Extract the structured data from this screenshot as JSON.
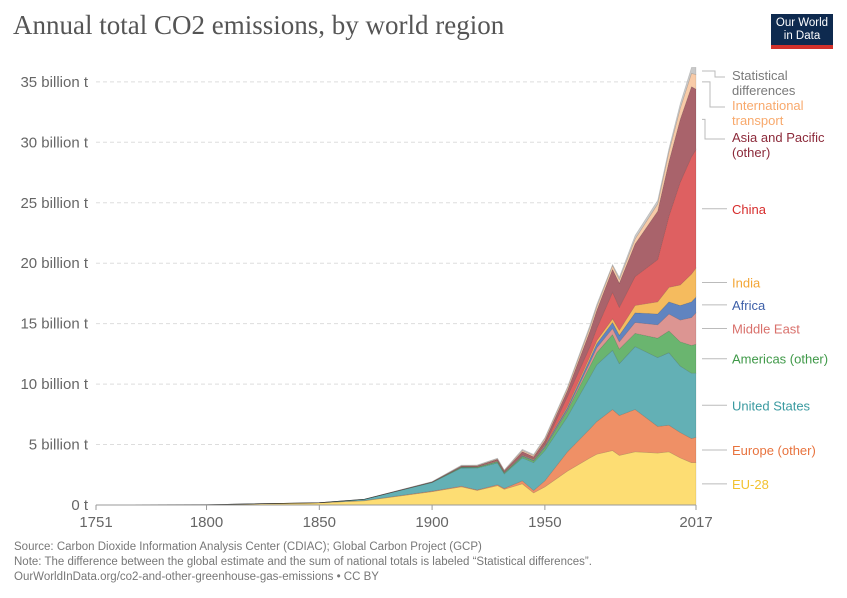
{
  "title": "Annual total CO2 emissions, by world region",
  "logo": {
    "line1": "Our World",
    "line2": "in Data"
  },
  "footer": {
    "source": "Source: Carbon Dioxide Information Analysis Center (CDIAC); Global Carbon Project (GCP)",
    "note": "Note: The difference between the global estimate and the sum of national totals is labeled “Statistical differences”.",
    "url": "OurWorldInData.org/co2-and-other-greenhouse-gas-emissions • CC BY"
  },
  "chart_data": {
    "type": "area",
    "stacked": true,
    "title": "Annual total CO2 emissions, by world region",
    "xlabel": "",
    "ylabel": "",
    "xlim": [
      1751,
      2017
    ],
    "ylim": [
      0,
      36
    ],
    "unit": "billion t",
    "x_ticks": [
      "1751",
      "1800",
      "1850",
      "1900",
      "1950",
      "2017"
    ],
    "x_tick_values": [
      1751,
      1800,
      1850,
      1900,
      1950,
      2017
    ],
    "y_ticks": [
      "0 t",
      "5 billion t",
      "10 billion t",
      "15 billion t",
      "20 billion t",
      "25 billion t",
      "30 billion t",
      "35 billion t"
    ],
    "y_tick_values": [
      0,
      5,
      10,
      15,
      20,
      25,
      30,
      35
    ],
    "grid": "horizontal dashed",
    "legend": "right (inline labels)",
    "x": [
      1751,
      1800,
      1850,
      1870,
      1900,
      1913,
      1920,
      1929,
      1932,
      1940,
      1945,
      1950,
      1960,
      1970,
      1973,
      1980,
      1983,
      1990,
      2000,
      2005,
      2010,
      2015,
      2017
    ],
    "series": [
      {
        "name": "EU-28",
        "fill": "#fddd73",
        "label_color": "#f2c230",
        "values": [
          0.009,
          0.03,
          0.18,
          0.35,
          1.1,
          1.5,
          1.2,
          1.6,
          1.3,
          1.75,
          1.0,
          1.5,
          2.8,
          3.9,
          4.2,
          4.5,
          4.1,
          4.4,
          4.3,
          4.4,
          3.9,
          3.5,
          3.5
        ]
      },
      {
        "name": "Europe (other)",
        "fill": "#ef9066",
        "label_color": "#e8733e",
        "values": [
          0,
          0,
          0.005,
          0.02,
          0.05,
          0.06,
          0.05,
          0.08,
          0.07,
          0.25,
          0.2,
          0.5,
          1.6,
          2.4,
          2.7,
          3.4,
          3.3,
          3.5,
          2.2,
          2.2,
          2.1,
          2.0,
          2.1
        ]
      },
      {
        "name": "United States",
        "fill": "#63b0b5",
        "label_color": "#3a9aa0",
        "values": [
          0,
          0.001,
          0.005,
          0.1,
          0.7,
          1.5,
          1.8,
          1.8,
          1.2,
          1.9,
          2.3,
          2.5,
          2.9,
          4.3,
          4.7,
          4.9,
          4.3,
          5.2,
          5.7,
          6.0,
          5.5,
          5.4,
          5.3
        ]
      },
      {
        "name": "Americas (other)",
        "fill": "#6ab56f",
        "label_color": "#3f9948",
        "values": [
          0,
          0,
          0,
          0.005,
          0.02,
          0.06,
          0.07,
          0.1,
          0.08,
          0.12,
          0.15,
          0.25,
          0.5,
          0.9,
          1.0,
          1.3,
          1.2,
          1.1,
          1.6,
          1.8,
          2.0,
          2.3,
          2.4
        ]
      },
      {
        "name": "Middle East",
        "fill": "#dc9592",
        "label_color": "#d9706b",
        "values": [
          0,
          0,
          0,
          0,
          0,
          0,
          0.005,
          0.01,
          0.01,
          0.02,
          0.02,
          0.04,
          0.1,
          0.3,
          0.4,
          0.5,
          0.6,
          0.9,
          1.1,
          1.4,
          1.8,
          2.3,
          2.6
        ]
      },
      {
        "name": "Africa",
        "fill": "#6084c0",
        "label_color": "#3d5fa8",
        "values": [
          0,
          0,
          0,
          0,
          0.01,
          0.02,
          0.02,
          0.03,
          0.03,
          0.05,
          0.05,
          0.1,
          0.15,
          0.3,
          0.35,
          0.5,
          0.55,
          0.8,
          0.9,
          1.0,
          1.2,
          1.3,
          1.3
        ]
      },
      {
        "name": "India",
        "fill": "#f5bb5e",
        "label_color": "#f3a636",
        "values": [
          0,
          0,
          0,
          0,
          0.01,
          0.02,
          0.02,
          0.03,
          0.03,
          0.04,
          0.05,
          0.06,
          0.12,
          0.2,
          0.25,
          0.3,
          0.4,
          0.6,
          1.0,
          1.2,
          1.7,
          2.3,
          2.4
        ]
      },
      {
        "name": "China",
        "fill": "#de6061",
        "label_color": "#d72d2d",
        "values": [
          0,
          0,
          0,
          0,
          0,
          0.01,
          0.01,
          0.03,
          0.03,
          0.03,
          0.02,
          0.08,
          0.8,
          0.8,
          1.0,
          2.2,
          1.9,
          2.4,
          3.5,
          5.9,
          8.5,
          9.7,
          9.8
        ]
      },
      {
        "name": "Asia and Pacific (other)",
        "fill": "#a9636b",
        "label_color": "#8c2a3a",
        "values": [
          0,
          0,
          0,
          0.005,
          0.03,
          0.06,
          0.06,
          0.1,
          0.08,
          0.25,
          0.2,
          0.3,
          0.5,
          1.3,
          1.5,
          1.9,
          2.0,
          2.7,
          4.0,
          4.5,
          5.2,
          5.8,
          5.0
        ]
      },
      {
        "name": "International transport",
        "fill": "#f8cba8",
        "label_color": "#f8a96c",
        "values": [
          0,
          0,
          0,
          0,
          0,
          0.02,
          0.03,
          0.05,
          0.04,
          0.1,
          0.1,
          0.15,
          0.2,
          0.3,
          0.3,
          0.3,
          0.3,
          0.4,
          0.6,
          0.8,
          0.9,
          1.1,
          1.2
        ]
      },
      {
        "name": "Statistical differences",
        "fill": "#c9c9c9",
        "label_color": "#7a7a7a",
        "values": [
          0,
          0,
          0,
          0,
          0.02,
          0.05,
          0.05,
          0.05,
          0.04,
          0.1,
          0.1,
          0.1,
          0.1,
          0.2,
          0.2,
          0.1,
          0.2,
          0.3,
          0.3,
          0.3,
          0.4,
          0.5,
          0.6
        ]
      }
    ]
  }
}
